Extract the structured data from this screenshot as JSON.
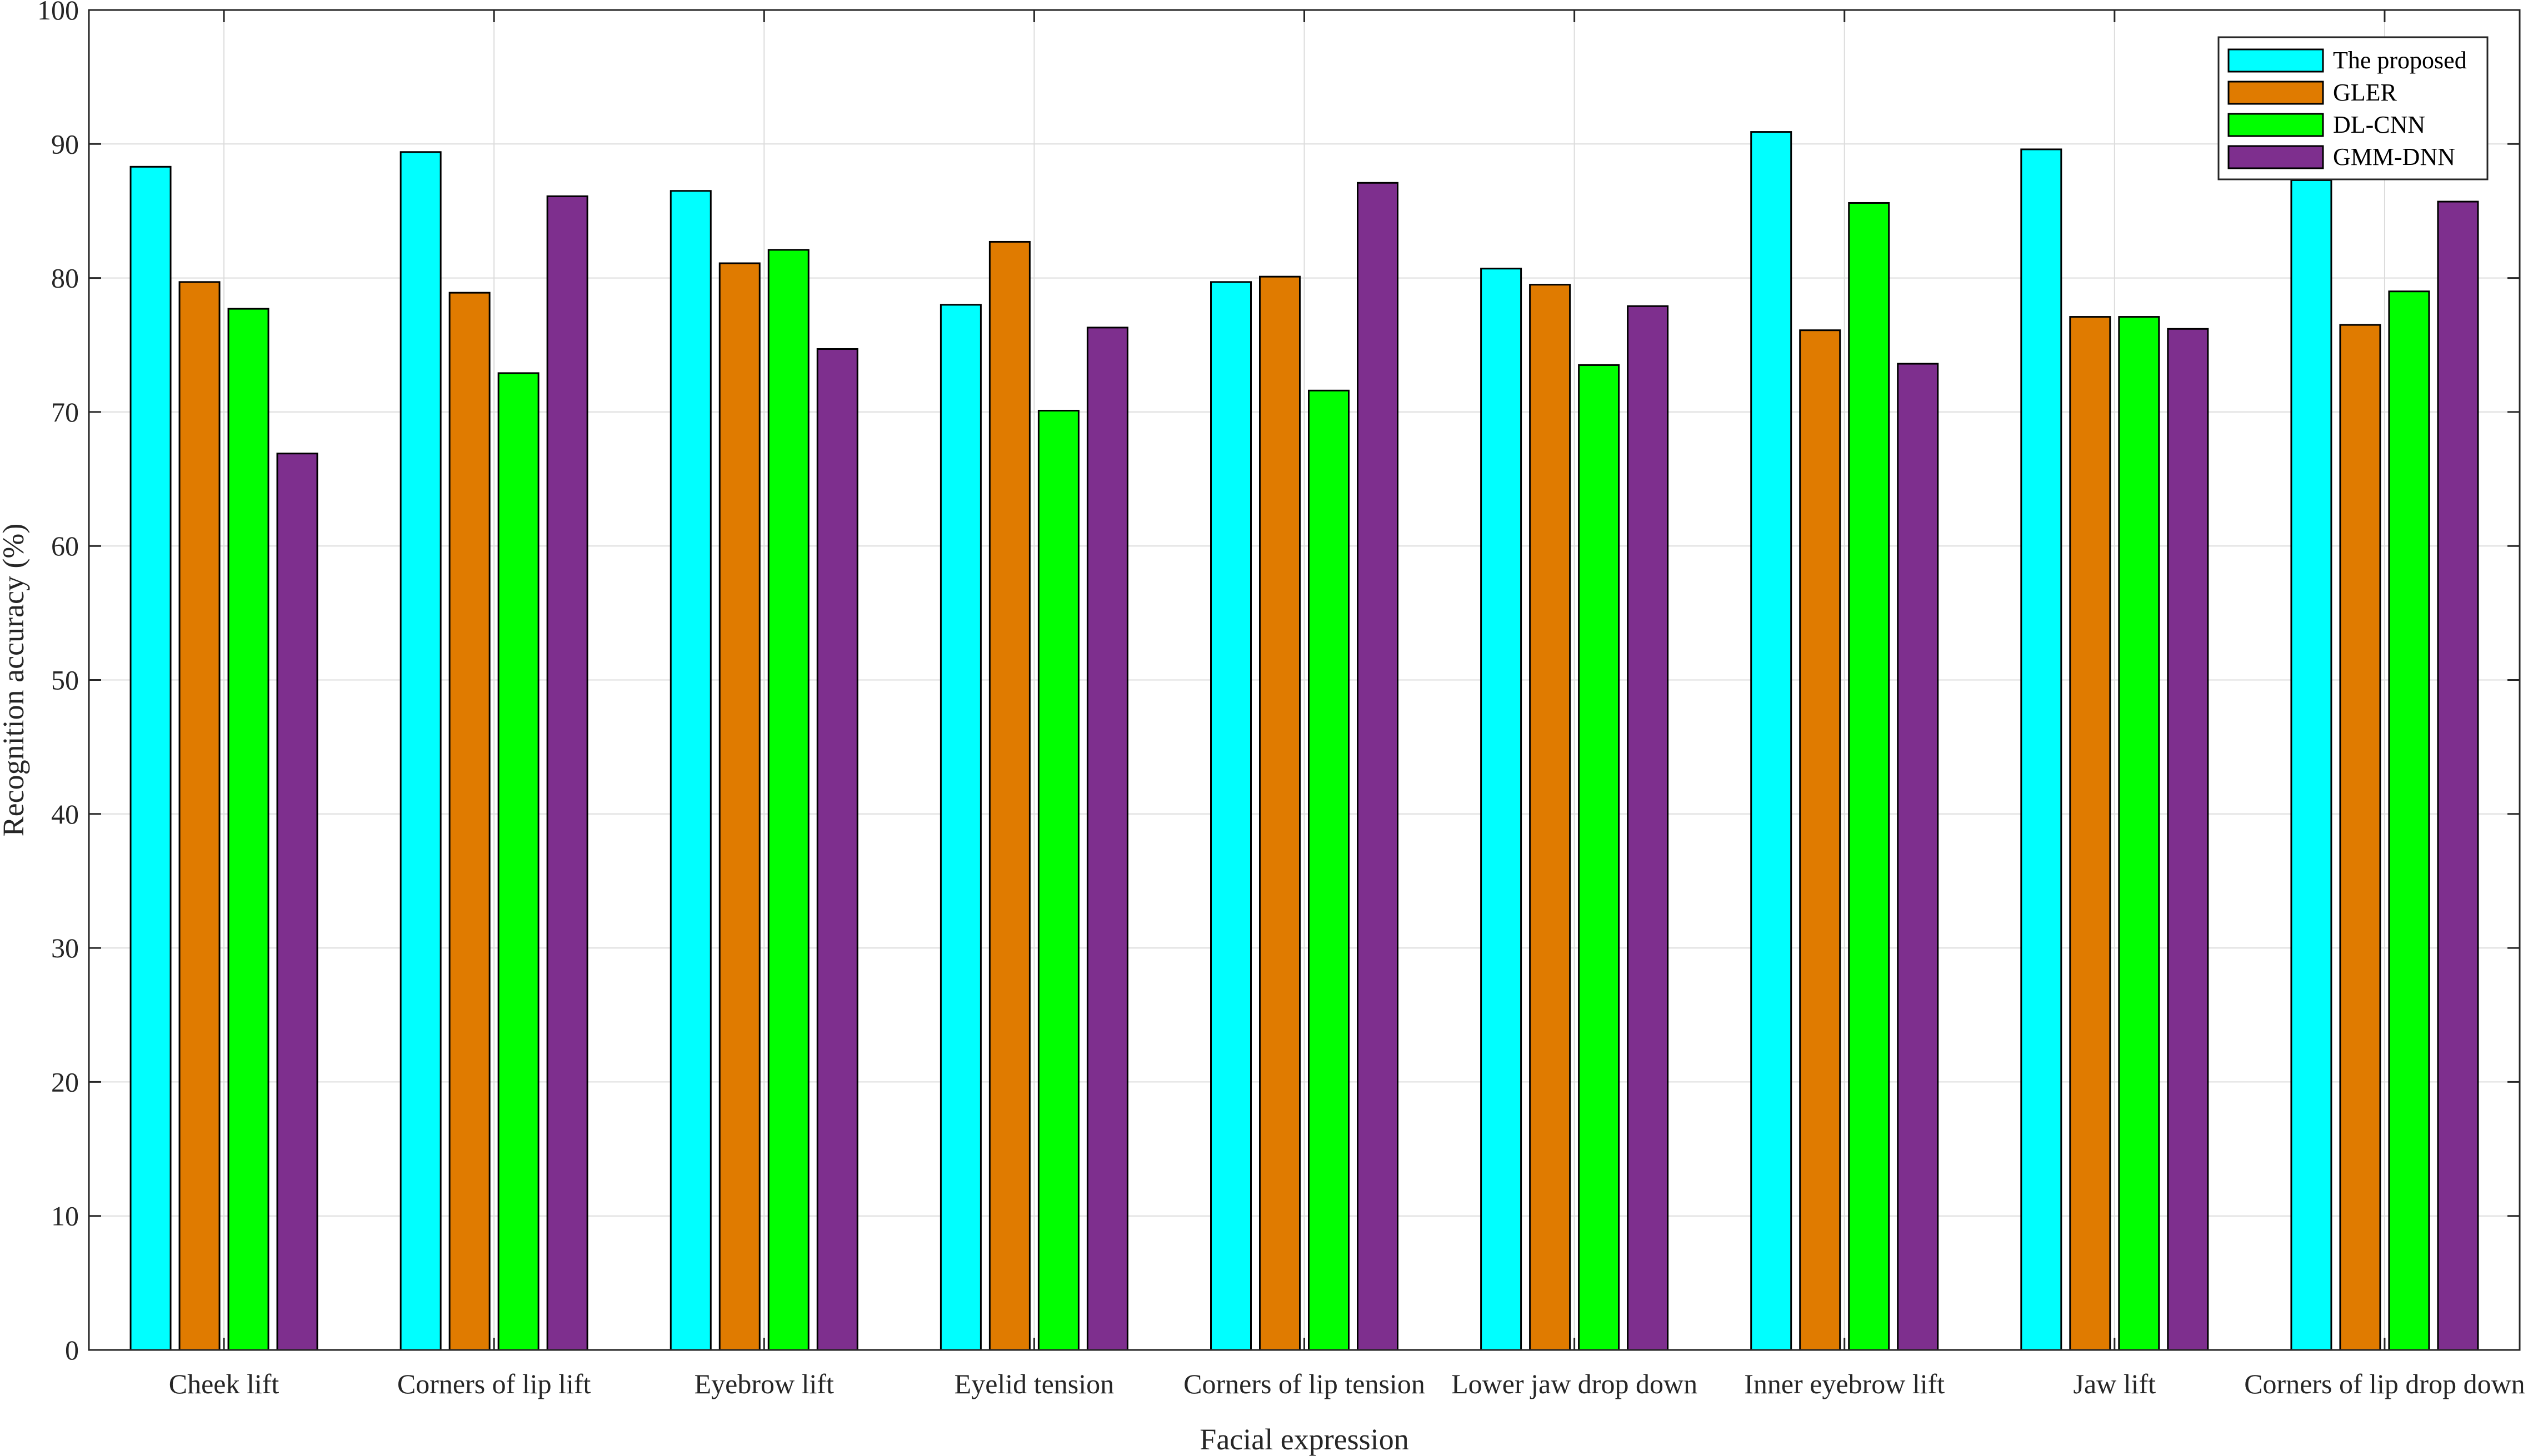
{
  "chart_data": {
    "type": "bar",
    "title": "",
    "xlabel": "Facial expression",
    "ylabel": "Recognition accuracy (%)",
    "ylim": [
      0,
      100
    ],
    "yticks": [
      "0",
      "10",
      "20",
      "30",
      "40",
      "50",
      "60",
      "70",
      "80",
      "90",
      "100"
    ],
    "grid": true,
    "legend_position": "top-right",
    "categories": [
      "Cheek lift",
      "Corners of lip lift",
      "Eyebrow lift",
      "Eyelid tension",
      "Corners of lip tension",
      "Lower jaw drop down",
      "Inner eyebrow lift",
      "Jaw lift",
      "Corners of lip drop down"
    ],
    "series": [
      {
        "name": "The proposed",
        "color": "#00FFFF",
        "values": [
          88.3,
          89.4,
          86.5,
          78.0,
          79.7,
          80.7,
          90.9,
          89.6,
          87.3
        ]
      },
      {
        "name": "GLER",
        "color": "#E07B00",
        "values": [
          79.7,
          78.9,
          81.1,
          82.7,
          80.1,
          79.5,
          76.1,
          77.1,
          76.5
        ]
      },
      {
        "name": "DL-CNN",
        "color": "#00FF00",
        "values": [
          77.7,
          72.9,
          82.1,
          70.1,
          71.6,
          73.5,
          85.6,
          77.1,
          79.0
        ]
      },
      {
        "name": "GMM-DNN",
        "color": "#7E2F8E",
        "values": [
          66.9,
          86.1,
          74.7,
          76.3,
          87.1,
          77.9,
          73.6,
          76.2,
          85.7
        ]
      }
    ]
  }
}
